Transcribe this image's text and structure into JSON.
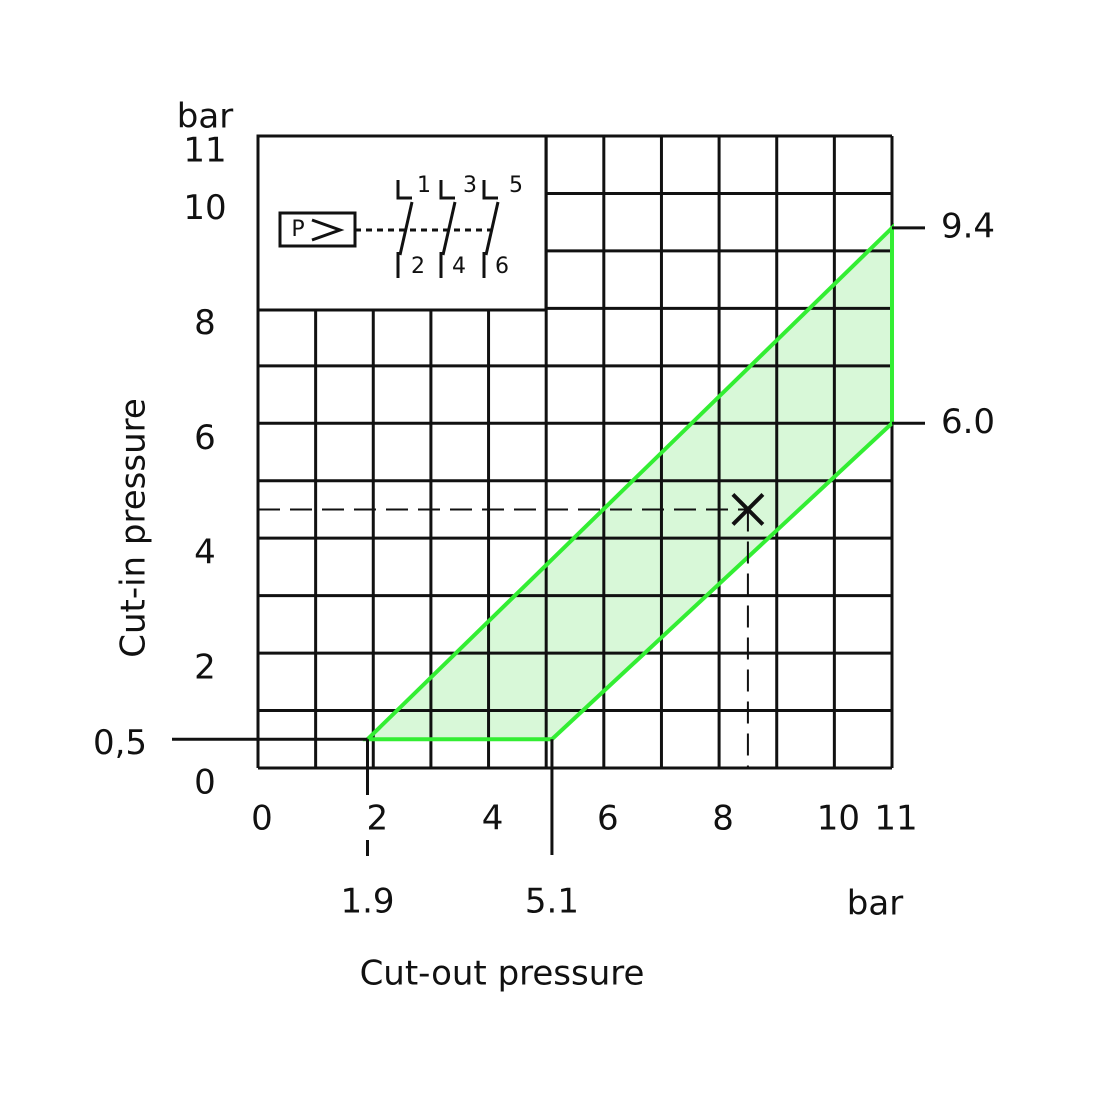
{
  "chart_data": {
    "type": "area",
    "xlabel": "Cut-out pressure",
    "ylabel": "Cut-in pressure",
    "x_unit": "bar",
    "y_unit": "bar",
    "xlim": [
      0,
      11
    ],
    "ylim": [
      0,
      11
    ],
    "xticks": [
      0,
      2,
      4,
      6,
      8,
      10,
      11
    ],
    "yticks": [
      0,
      2,
      4,
      6,
      8,
      10,
      11
    ],
    "x_gridlines": [
      0,
      1,
      2,
      3,
      4,
      5,
      6,
      7,
      8,
      9,
      10,
      11
    ],
    "y_gridlines": [
      0,
      1,
      2,
      3,
      4,
      5,
      6,
      7,
      8,
      9,
      10,
      11
    ],
    "region": {
      "x": [
        1.9,
        5.1,
        11,
        11
      ],
      "y": [
        0.5,
        0.5,
        6,
        9.4
      ],
      "color": "#33ee33",
      "fill": "#d8f8d8"
    },
    "x_markers": [
      1.9,
      5.1
    ],
    "y_markers_left": [
      {
        "value": 0.5,
        "label": "0,5"
      }
    ],
    "y_markers_right": [
      9.4,
      {
        "value": 6,
        "label": "6.0"
      }
    ],
    "point": {
      "x": 8.5,
      "y": 4.5
    },
    "symbol_labels": [
      "P",
      "1",
      "3",
      "5",
      "2",
      "4",
      "6"
    ]
  }
}
